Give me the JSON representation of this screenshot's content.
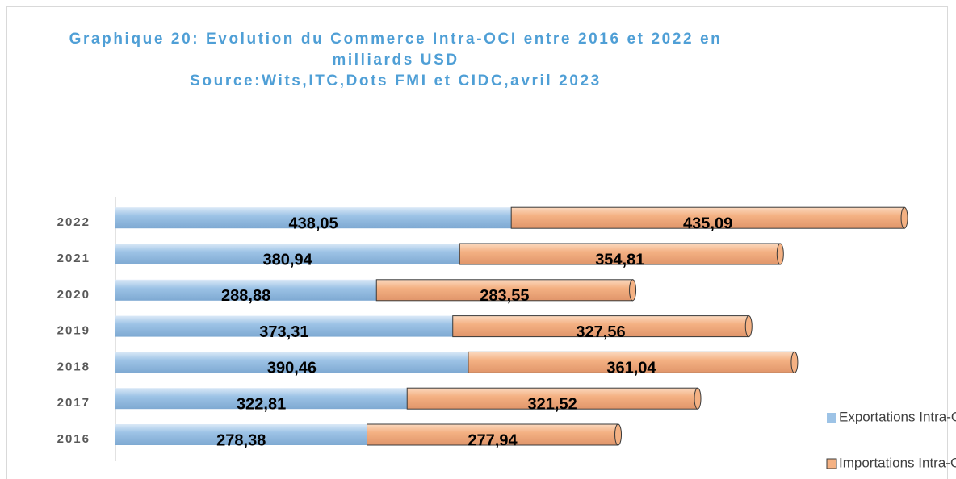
{
  "chart_data": {
    "type": "bar",
    "stacked": true,
    "orientation": "horizontal",
    "title": "Graphique 20: Evolution du Commerce Intra-OCI entre 2016 et 2022 en milliards USD",
    "subtitle": "Source:Wits,ITC,Dots FMI et CIDC,avril 2023",
    "categories": [
      "2016",
      "2017",
      "2018",
      "2019",
      "2020",
      "2021",
      "2022"
    ],
    "series": [
      {
        "name": "Exportations Intra-OCI",
        "color": "#9dc3e6",
        "values": [
          278.38,
          322.81,
          390.46,
          373.31,
          288.88,
          380.94,
          438.05
        ],
        "value_labels": [
          "278,38",
          "322,81",
          "390,46",
          "373,31",
          "288,88",
          "380,94",
          "438,05"
        ]
      },
      {
        "name": "Importations Intra-OCI",
        "color": "#f4b183",
        "values": [
          277.94,
          321.52,
          361.04,
          327.56,
          283.55,
          354.81,
          435.09
        ],
        "value_labels": [
          "277,94",
          "321,52",
          "361,04",
          "327,56",
          "283,55",
          "354,81",
          "435,09"
        ]
      }
    ]
  }
}
